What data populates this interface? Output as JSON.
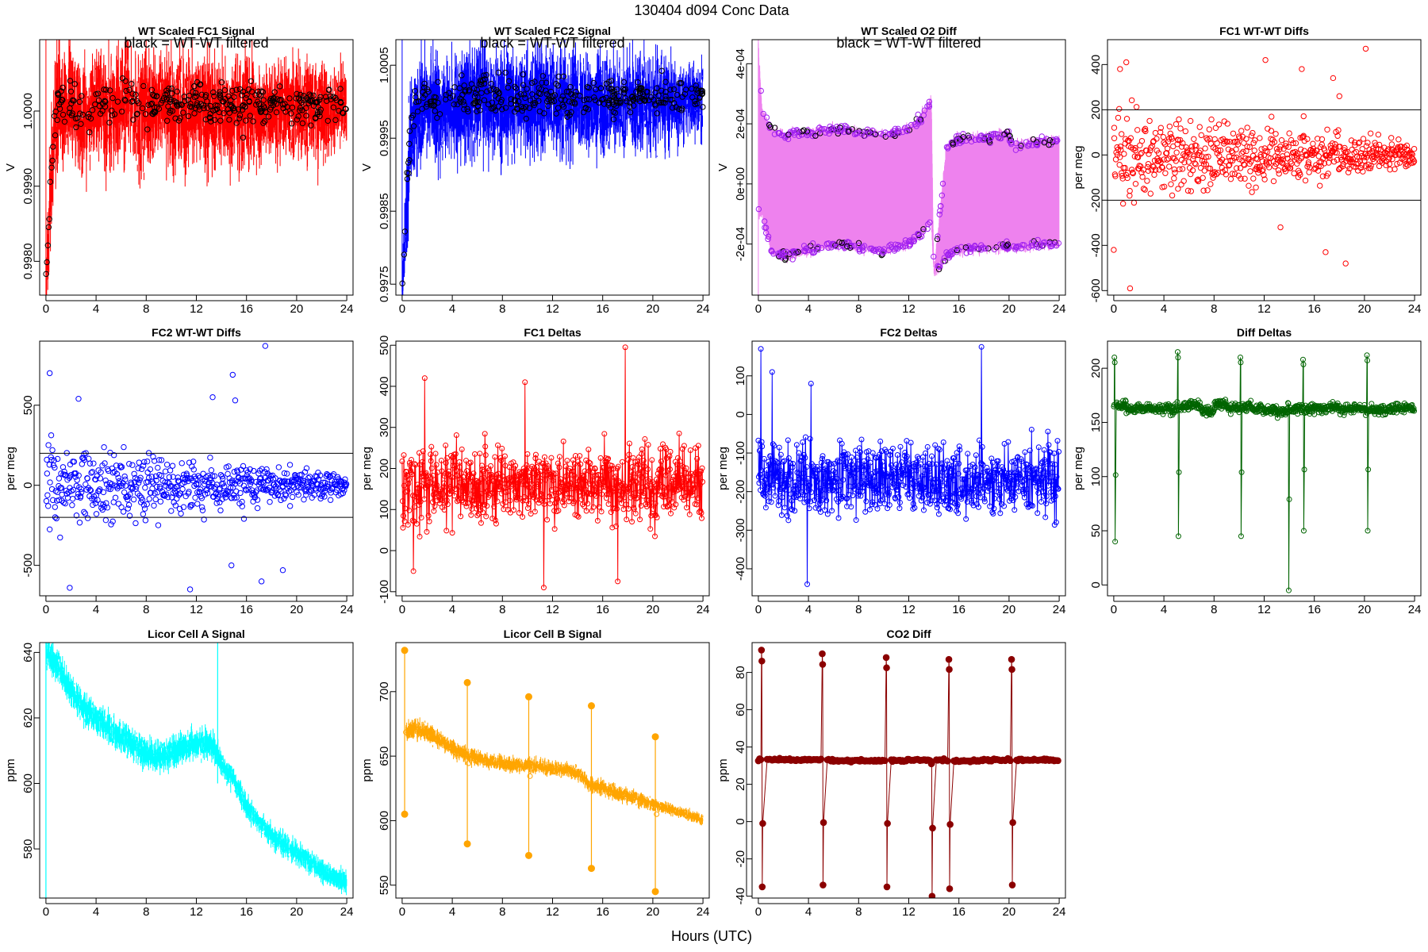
{
  "main_title": "130404   d094   Conc Data",
  "x_axis_label": "Hours (UTC)",
  "chart_data": [
    {
      "id": "fc1-signal",
      "type": "line",
      "title": "WT Scaled FC1 Signal",
      "note": "black = WT-WT filtered",
      "ylabel": "V",
      "xlim": [
        -0.5,
        24.5
      ],
      "ylim": [
        0.99755,
        1.00095
      ],
      "xticks": [
        0,
        4,
        8,
        12,
        16,
        20,
        24
      ],
      "xtick_labels": [
        "0",
        "4",
        "8",
        "12",
        "16",
        "20",
        "24"
      ],
      "yticks": [
        0.998,
        0.999,
        1.0
      ],
      "ytick_labels": [
        "0.9980",
        "0.9990",
        "1.0000"
      ],
      "color": "#ff0000",
      "style": "band",
      "x": [
        0,
        0.25,
        0.5,
        0.75,
        1,
        1.5,
        2,
        3,
        4,
        5,
        6,
        6.5,
        7,
        8,
        9,
        10,
        11,
        12,
        13,
        14,
        15,
        16,
        17,
        18,
        19,
        20,
        21,
        22,
        23,
        24
      ],
      "y": [
        0.9977,
        0.9985,
        0.9993,
        0.9998,
        1.0001,
        0.99995,
        1.0001,
        0.99985,
        1.0001,
        0.99995,
        1.00005,
        1.0002,
        1.0,
        0.99995,
        1.00005,
        0.99998,
        1.0,
        1.00005,
        0.99995,
        1.0,
        0.99998,
        1.00002,
        0.99995,
        1.00002,
        0.99998,
        1.0,
        1.00002,
        0.99998,
        1.00002,
        1.0
      ],
      "band": [
        0.0003,
        0.0005,
        0.0006,
        0.0007,
        0.0007,
        0.0006,
        0.0006,
        0.0006,
        0.0005,
        0.0006,
        0.0006,
        0.0006,
        0.0005,
        0.0006,
        0.0005,
        0.0006,
        0.0006,
        0.0005,
        0.0006,
        0.0005,
        0.0005,
        0.0006,
        0.0005,
        0.0005,
        0.0005,
        0.0005,
        0.0005,
        0.0005,
        0.0004,
        0.0004
      ],
      "overlay_color": "#000000"
    },
    {
      "id": "fc2-signal",
      "type": "line",
      "title": "WT Scaled FC2 Signal",
      "note": "black = WT-WT filtered",
      "ylabel": "V",
      "xlim": [
        -0.5,
        24.5
      ],
      "ylim": [
        0.99735,
        1.00085
      ],
      "xticks": [
        0,
        4,
        8,
        12,
        16,
        20,
        24
      ],
      "xtick_labels": [
        "0",
        "4",
        "8",
        "12",
        "16",
        "20",
        "24"
      ],
      "yticks": [
        0.9975,
        0.9985,
        0.9995,
        1.0005
      ],
      "ytick_labels": [
        "0.9975",
        "0.9985",
        "0.9995",
        "1.0005"
      ],
      "color": "#0000ff",
      "style": "band",
      "x": [
        0,
        0.25,
        0.5,
        0.75,
        1,
        1.5,
        2,
        3,
        4,
        5,
        6,
        6.5,
        7,
        8,
        9,
        10,
        11,
        12,
        13,
        14,
        15,
        16,
        17,
        18,
        19,
        20,
        21,
        22,
        23,
        24
      ],
      "y": [
        0.9974,
        0.9982,
        0.9991,
        0.9996,
        0.99985,
        0.99985,
        1.0,
        0.99985,
        1.0,
        0.99995,
        1.0,
        1.00015,
        0.99995,
        0.99995,
        1.0,
        0.99995,
        1.0,
        1.00002,
        0.99995,
        1.0,
        0.99995,
        1.0,
        0.99995,
        1.0,
        0.99998,
        1.0,
        1.00002,
        0.99998,
        1.00002,
        1.0
      ],
      "band": [
        0.0003,
        0.0005,
        0.0006,
        0.0006,
        0.0006,
        0.0006,
        0.0005,
        0.0006,
        0.0005,
        0.0006,
        0.0006,
        0.0006,
        0.0005,
        0.0006,
        0.0005,
        0.0006,
        0.0006,
        0.0005,
        0.0006,
        0.0005,
        0.0005,
        0.0006,
        0.0005,
        0.0005,
        0.0005,
        0.0005,
        0.0005,
        0.0004,
        0.0004,
        0.0004
      ],
      "overlay_color": "#000000"
    },
    {
      "id": "o2-diff",
      "type": "line",
      "title": "WT Scaled O2 Diff",
      "note": "black = WT-WT filtered",
      "ylabel": "V",
      "xlim": [
        -0.5,
        24.5
      ],
      "ylim": [
        -0.00037,
        0.00048
      ],
      "xticks": [
        0,
        4,
        8,
        12,
        16,
        20,
        24
      ],
      "xtick_labels": [
        "0",
        "4",
        "8",
        "12",
        "16",
        "20",
        "24"
      ],
      "yticks": [
        -0.0002,
        0.0,
        0.0002,
        0.0004
      ],
      "ytick_labels": [
        "-2e-04",
        "0e+00",
        "2e-04",
        "4e-04"
      ],
      "color": "#ee82ee",
      "style": "switching",
      "upper_x": [
        0,
        0.3,
        1,
        2,
        4,
        6,
        8,
        10,
        12,
        13,
        13.8,
        14,
        15,
        16,
        18,
        20,
        20.3,
        21,
        22,
        24
      ],
      "upper_y": [
        0.00045,
        0.00025,
        0.00018,
        0.00016,
        0.00017,
        0.00018,
        0.00017,
        0.00016,
        0.00018,
        0.00022,
        0.00028,
        -0.0003,
        0.00012,
        0.00015,
        0.00015,
        0.00017,
        0.00012,
        0.00013,
        0.00014,
        0.00014
      ],
      "lower_x": [
        0,
        0.3,
        1,
        2,
        4,
        6,
        8,
        10,
        12,
        13,
        13.8,
        14,
        15,
        16,
        18,
        20,
        20.3,
        21,
        22,
        24
      ],
      "lower_y": [
        -0.0001,
        -0.0001,
        -0.00022,
        -0.00024,
        -0.00022,
        -0.0002,
        -0.00021,
        -0.00022,
        -0.0002,
        -0.00017,
        -0.00012,
        -0.0003,
        -0.00024,
        -0.00022,
        -0.00021,
        -0.00021,
        -0.00021,
        -0.00021,
        -0.0002,
        -0.0002
      ],
      "overlay_color": "#a020f0"
    },
    {
      "id": "fc1-wtwt",
      "type": "scatter",
      "title": "FC1 WT-WT Diffs",
      "ylabel": "per meg",
      "xlim": [
        -0.5,
        24.5
      ],
      "ylim": [
        -620,
        510
      ],
      "xticks": [
        0,
        4,
        8,
        12,
        16,
        20,
        24
      ],
      "xtick_labels": [
        "0",
        "4",
        "8",
        "12",
        "16",
        "20",
        "24"
      ],
      "yticks": [
        -600,
        -400,
        -200,
        0,
        200,
        400
      ],
      "ytick_labels": [
        "-600",
        "-400",
        "-200",
        "0",
        "200",
        "400"
      ],
      "color": "#ff0000",
      "hlines": [
        200,
        -200
      ],
      "n_points": 620,
      "spread_start": 150,
      "spread_end": 40,
      "outliers": [
        [
          0,
          -420
        ],
        [
          0.5,
          380
        ],
        [
          1.3,
          -590
        ],
        [
          1.0,
          410
        ],
        [
          12.1,
          420
        ],
        [
          20.1,
          470
        ],
        [
          17.5,
          340
        ],
        [
          18.0,
          260
        ],
        [
          15.0,
          380
        ],
        [
          16.9,
          -430
        ],
        [
          18.5,
          -480
        ],
        [
          13.3,
          -320
        ]
      ]
    },
    {
      "id": "fc2-wtwt",
      "type": "scatter",
      "title": "FC2 WT-WT Diffs",
      "ylabel": "per meg",
      "xlim": [
        -0.5,
        24.5
      ],
      "ylim": [
        -690,
        900
      ],
      "xticks": [
        0,
        4,
        8,
        12,
        16,
        20,
        24
      ],
      "xtick_labels": [
        "0",
        "4",
        "8",
        "12",
        "16",
        "20",
        "24"
      ],
      "yticks": [
        -500,
        0,
        500
      ],
      "ytick_labels": [
        "-500",
        "0",
        "500"
      ],
      "color": "#0000ff",
      "hlines": [
        200,
        -200
      ],
      "n_points": 620,
      "spread_start": 180,
      "spread_end": 50,
      "outliers": [
        [
          0.3,
          700
        ],
        [
          1.9,
          -640
        ],
        [
          2.6,
          540
        ],
        [
          11.5,
          -650
        ],
        [
          13.3,
          550
        ],
        [
          14.9,
          690
        ],
        [
          15.1,
          530
        ],
        [
          17.5,
          870
        ],
        [
          17.2,
          -600
        ],
        [
          18.9,
          -530
        ],
        [
          14.8,
          -500
        ]
      ]
    },
    {
      "id": "fc1-deltas",
      "type": "line",
      "title": "FC1 Deltas",
      "ylabel": "per meg",
      "xlim": [
        -0.5,
        24.5
      ],
      "ylim": [
        -110,
        510
      ],
      "xticks": [
        0,
        4,
        8,
        12,
        16,
        20,
        24
      ],
      "xtick_labels": [
        "0",
        "4",
        "8",
        "12",
        "16",
        "20",
        "24"
      ],
      "yticks": [
        -100,
        0,
        100,
        200,
        300,
        400,
        500
      ],
      "ytick_labels": [
        "-100",
        "0",
        "100",
        "200",
        "300",
        "400",
        "500"
      ],
      "color": "#ff0000",
      "style": "noisy",
      "n_points": 720,
      "center": 160,
      "spread": 75,
      "spikes": [
        [
          1.8,
          420
        ],
        [
          9.8,
          410
        ],
        [
          17.8,
          495
        ],
        [
          11.3,
          -90
        ],
        [
          17.2,
          -75
        ],
        [
          0.9,
          -50
        ]
      ]
    },
    {
      "id": "fc2-deltas",
      "type": "line",
      "title": "FC2 Deltas",
      "ylabel": "per meg",
      "xlim": [
        -0.5,
        24.5
      ],
      "ylim": [
        -470,
        190
      ],
      "xticks": [
        0,
        4,
        8,
        12,
        16,
        20,
        24
      ],
      "xtick_labels": [
        "0",
        "4",
        "8",
        "12",
        "16",
        "20",
        "24"
      ],
      "yticks": [
        -400,
        -300,
        -200,
        -100,
        0,
        100
      ],
      "ytick_labels": [
        "-400",
        "-300",
        "-200",
        "-100",
        "0",
        "100"
      ],
      "color": "#0000ff",
      "style": "noisy",
      "n_points": 720,
      "center": -170,
      "spread": 75,
      "spikes": [
        [
          0.2,
          170
        ],
        [
          17.8,
          175
        ],
        [
          3.9,
          -440
        ],
        [
          1.1,
          110
        ],
        [
          4.2,
          80
        ]
      ]
    },
    {
      "id": "diff-deltas",
      "type": "line",
      "title": "Diff Deltas",
      "ylabel": "per meg",
      "xlim": [
        -0.5,
        24.5
      ],
      "ylim": [
        -10,
        225
      ],
      "xticks": [
        0,
        4,
        8,
        12,
        16,
        20,
        24
      ],
      "xtick_labels": [
        "0",
        "4",
        "8",
        "12",
        "16",
        "20",
        "24"
      ],
      "yticks": [
        0,
        50,
        100,
        150,
        200
      ],
      "ytick_labels": [
        "0",
        "50",
        "100",
        "150",
        "200"
      ],
      "color": "#006400",
      "style": "steady",
      "n_points": 720,
      "center": 163,
      "spread": 6,
      "events": [
        [
          0.05,
          210,
          40
        ],
        [
          5.1,
          215,
          45
        ],
        [
          10.1,
          210,
          45
        ],
        [
          13.9,
          168,
          -5
        ],
        [
          15.1,
          208,
          50
        ],
        [
          20.2,
          212,
          50
        ]
      ]
    },
    {
      "id": "licor-a",
      "type": "line",
      "title": "Licor Cell A Signal",
      "ylabel": "ppm",
      "xlim": [
        -0.5,
        24.5
      ],
      "ylim": [
        565,
        643
      ],
      "xticks": [
        0,
        4,
        8,
        12,
        16,
        20,
        24
      ],
      "xtick_labels": [
        "0",
        "4",
        "8",
        "12",
        "16",
        "20",
        "24"
      ],
      "yticks": [
        580,
        600,
        620,
        640
      ],
      "ytick_labels": [
        "580",
        "600",
        "620",
        "640"
      ],
      "color": "#00ffff",
      "style": "band",
      "x": [
        0,
        1,
        2,
        3,
        4,
        5,
        6,
        7,
        8,
        9,
        10,
        11,
        12,
        13,
        13.7,
        14,
        15,
        16,
        17,
        18,
        19,
        20,
        21,
        22,
        23,
        24
      ],
      "y": [
        640,
        636,
        628,
        623,
        620,
        617,
        614,
        612,
        609,
        608,
        609,
        611,
        612,
        612,
        609,
        606,
        601,
        593,
        588,
        584,
        581,
        579,
        576,
        573,
        571,
        570
      ],
      "band": [
        4,
        4,
        4,
        4,
        4,
        4,
        4,
        4,
        4,
        4,
        4,
        4,
        4,
        4,
        4,
        3,
        3,
        3,
        3,
        3,
        3,
        3,
        3,
        3,
        3,
        3
      ]
    },
    {
      "id": "licor-b",
      "type": "line",
      "title": "Licor Cell B Signal",
      "ylabel": "ppm",
      "xlim": [
        -0.5,
        24.5
      ],
      "ylim": [
        540,
        738
      ],
      "xticks": [
        0,
        4,
        8,
        12,
        16,
        20,
        24
      ],
      "xtick_labels": [
        "0",
        "4",
        "8",
        "12",
        "16",
        "20",
        "24"
      ],
      "yticks": [
        550,
        600,
        650,
        700
      ],
      "ytick_labels": [
        "550",
        "600",
        "650",
        "700"
      ],
      "color": "#ffa500",
      "style": "band",
      "x": [
        0.3,
        1,
        2,
        3,
        4,
        5,
        6,
        7,
        8,
        9,
        10,
        11,
        12,
        13,
        14,
        14.5,
        15,
        16,
        17,
        18,
        19,
        20,
        21,
        22,
        23,
        24
      ],
      "y": [
        668,
        672,
        668,
        662,
        656,
        652,
        648,
        646,
        644,
        643,
        643,
        642,
        640,
        639,
        637,
        632,
        628,
        625,
        622,
        619,
        616,
        612,
        610,
        607,
        604,
        601
      ],
      "band": [
        7,
        7,
        7,
        6,
        6,
        6,
        5,
        5,
        5,
        5,
        5,
        5,
        5,
        5,
        5,
        5,
        5,
        5,
        5,
        5,
        5,
        4,
        4,
        4,
        4,
        4
      ],
      "spikes": [
        [
          0.2,
          732,
          605
        ],
        [
          5.2,
          707,
          582
        ],
        [
          10.1,
          696,
          573
        ],
        [
          15.1,
          689,
          563
        ],
        [
          20.2,
          665,
          545
        ]
      ]
    },
    {
      "id": "co2-diff",
      "type": "line",
      "title": "CO2 Diff",
      "ylabel": "ppm",
      "xlim": [
        -0.5,
        24.5
      ],
      "ylim": [
        -41,
        96
      ],
      "xticks": [
        0,
        4,
        8,
        12,
        16,
        20,
        24
      ],
      "xtick_labels": [
        "0",
        "4",
        "8",
        "12",
        "16",
        "20",
        "24"
      ],
      "yticks": [
        -40,
        -20,
        0,
        20,
        40,
        60,
        80
      ],
      "ytick_labels": [
        "-40",
        "-20",
        "0",
        "20",
        "40",
        "60",
        "80"
      ],
      "color": "#8b0000",
      "style": "steady",
      "n_points": 240,
      "center": 33,
      "spread": 0.8,
      "events": [
        [
          0.25,
          92,
          -35
        ],
        [
          5.1,
          90,
          -34
        ],
        [
          10.2,
          88,
          -35
        ],
        [
          13.8,
          31,
          -40
        ],
        [
          15.2,
          87,
          -36
        ],
        [
          20.2,
          87,
          -34
        ]
      ]
    }
  ]
}
